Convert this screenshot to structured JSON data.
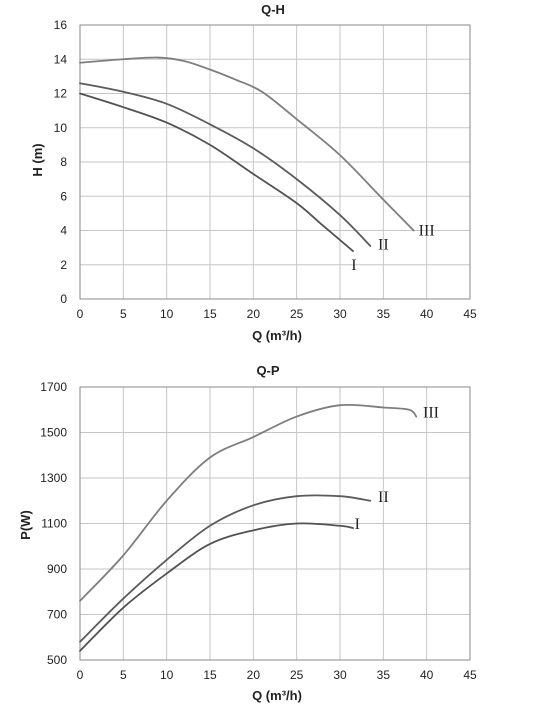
{
  "colors": {
    "curve_I": "#525252",
    "curve_II": "#5b5b5b",
    "curve_III": "#7e7e7e",
    "grid": "#c6c6c6",
    "text": "#222222"
  },
  "chart_data": [
    {
      "type": "line",
      "title": "Q-H",
      "xlabel": "Q (m³/h)",
      "ylabel": "H (m)",
      "xlim": [
        0,
        45
      ],
      "ylim": [
        0,
        16
      ],
      "xticks": [
        0,
        5,
        10,
        15,
        20,
        25,
        30,
        35,
        40,
        45
      ],
      "yticks": [
        0,
        2,
        4,
        6,
        8,
        10,
        12,
        14,
        16
      ],
      "grid": true,
      "series": [
        {
          "name": "I",
          "x": [
            0,
            5,
            10,
            15,
            20,
            25,
            28,
            31.5
          ],
          "y": [
            12.0,
            11.2,
            10.3,
            9.0,
            7.3,
            5.6,
            4.3,
            2.8
          ]
        },
        {
          "name": "II",
          "x": [
            0,
            5,
            10,
            15,
            20,
            25,
            30,
            33.5
          ],
          "y": [
            12.6,
            12.1,
            11.4,
            10.2,
            8.8,
            7.0,
            4.9,
            3.1
          ]
        },
        {
          "name": "III",
          "x": [
            0,
            5,
            9,
            12,
            15,
            18,
            21,
            25,
            30,
            35,
            38.5
          ],
          "y": [
            13.8,
            14.0,
            14.1,
            13.9,
            13.4,
            12.8,
            12.1,
            10.5,
            8.4,
            5.8,
            4.0
          ]
        }
      ],
      "labels": [
        {
          "text": "I",
          "x": 31.6,
          "y": 1.7
        },
        {
          "text": "II",
          "x": 35.0,
          "y": 2.9
        },
        {
          "text": "III",
          "x": 40.0,
          "y": 3.7
        }
      ]
    },
    {
      "type": "line",
      "title": "Q-P",
      "xlabel": "Q (m³/h)",
      "ylabel": "P(W)",
      "xlim": [
        0,
        45
      ],
      "ylim": [
        500,
        1700
      ],
      "xticks": [
        0,
        5,
        10,
        15,
        20,
        25,
        30,
        35,
        40,
        45
      ],
      "yticks": [
        500,
        700,
        900,
        1100,
        1300,
        1500,
        1700
      ],
      "grid": true,
      "series": [
        {
          "name": "I",
          "x": [
            0,
            5,
            10,
            15,
            20,
            25,
            30,
            31.5
          ],
          "y": [
            540,
            730,
            880,
            1010,
            1070,
            1100,
            1090,
            1080
          ]
        },
        {
          "name": "II",
          "x": [
            0,
            5,
            10,
            15,
            20,
            25,
            30,
            33.5
          ],
          "y": [
            580,
            770,
            940,
            1090,
            1180,
            1220,
            1220,
            1200
          ]
        },
        {
          "name": "III",
          "x": [
            0,
            5,
            10,
            15,
            20,
            25,
            30,
            35,
            38,
            38.8
          ],
          "y": [
            760,
            960,
            1200,
            1390,
            1480,
            1570,
            1620,
            1610,
            1600,
            1570
          ]
        }
      ],
      "labels": [
        {
          "text": "I",
          "x": 32.0,
          "y": 1075
        },
        {
          "text": "II",
          "x": 35.0,
          "y": 1195
        },
        {
          "text": "III",
          "x": 40.5,
          "y": 1565
        }
      ]
    }
  ]
}
